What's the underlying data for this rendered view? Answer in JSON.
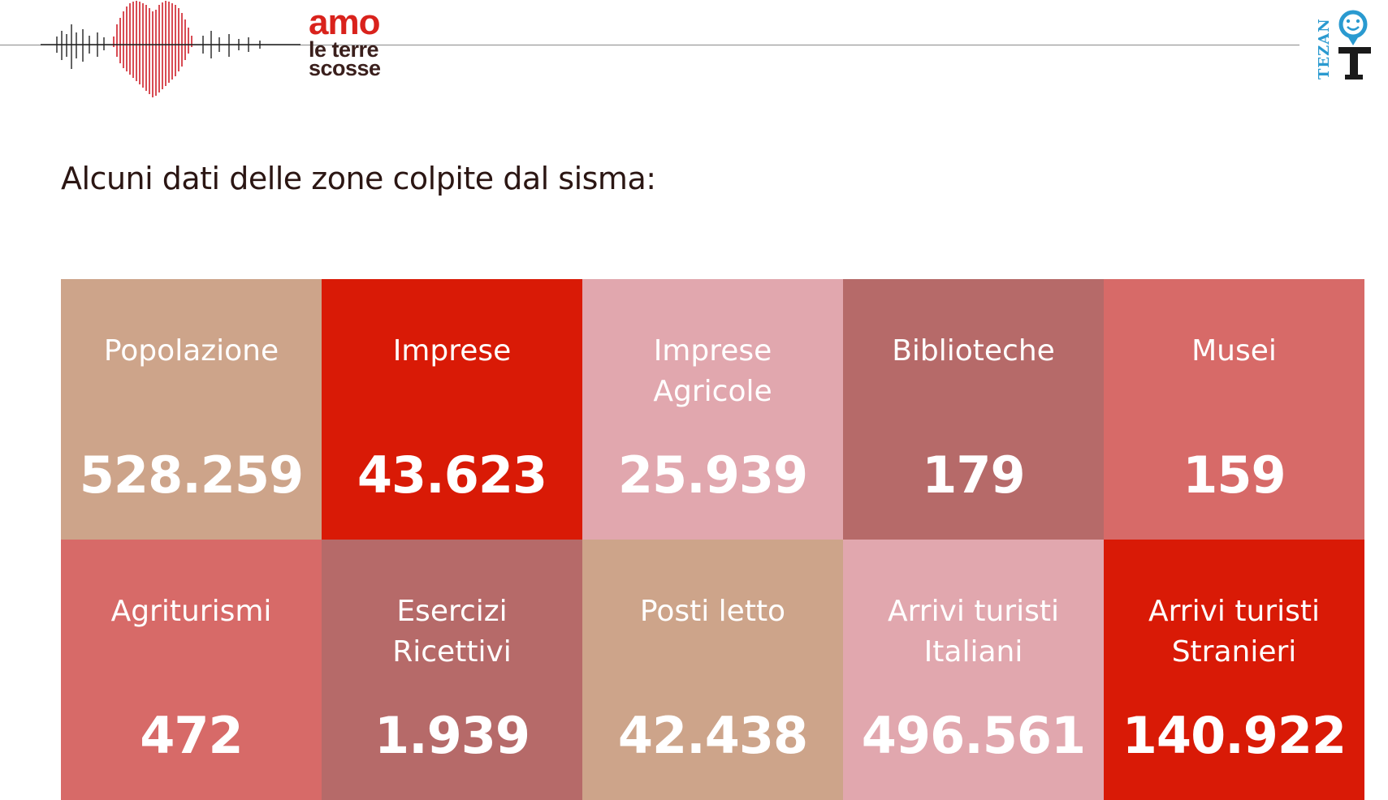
{
  "brand": {
    "line1": "amo",
    "line2": "le terre",
    "line3": "scosse",
    "logo_icon": "heartbeat-heart-icon"
  },
  "partner_logo": {
    "text": "TEZAN",
    "icon": "map-pin-smiley-icon"
  },
  "section_title": "Alcuni dati delle zone colpite dal sisma:",
  "tiles": [
    {
      "label": "Popolazione",
      "value": "528.259",
      "color": "#cda48a"
    },
    {
      "label": "Imprese",
      "value": "43.623",
      "color": "#d91a06"
    },
    {
      "label": "Imprese\nAgricole",
      "value": "25.939",
      "color": "#e1a7ae"
    },
    {
      "label": "Biblioteche",
      "value": "179",
      "color": "#b66a69"
    },
    {
      "label": "Musei",
      "value": "159",
      "color": "#d76a68"
    },
    {
      "label": "Agriturismi",
      "value": "472",
      "color": "#d76a68"
    },
    {
      "label": "Esercizi\nRicettivi",
      "value": "1.939",
      "color": "#b66a69"
    },
    {
      "label": "Posti letto",
      "value": "42.438",
      "color": "#cda48a"
    },
    {
      "label": "Arrivi turisti\nItaliani",
      "value": "496.561",
      "color": "#e1a7ae"
    },
    {
      "label": "Arrivi turisti\nStranieri",
      "value": "140.922",
      "color": "#d91a06"
    }
  ]
}
